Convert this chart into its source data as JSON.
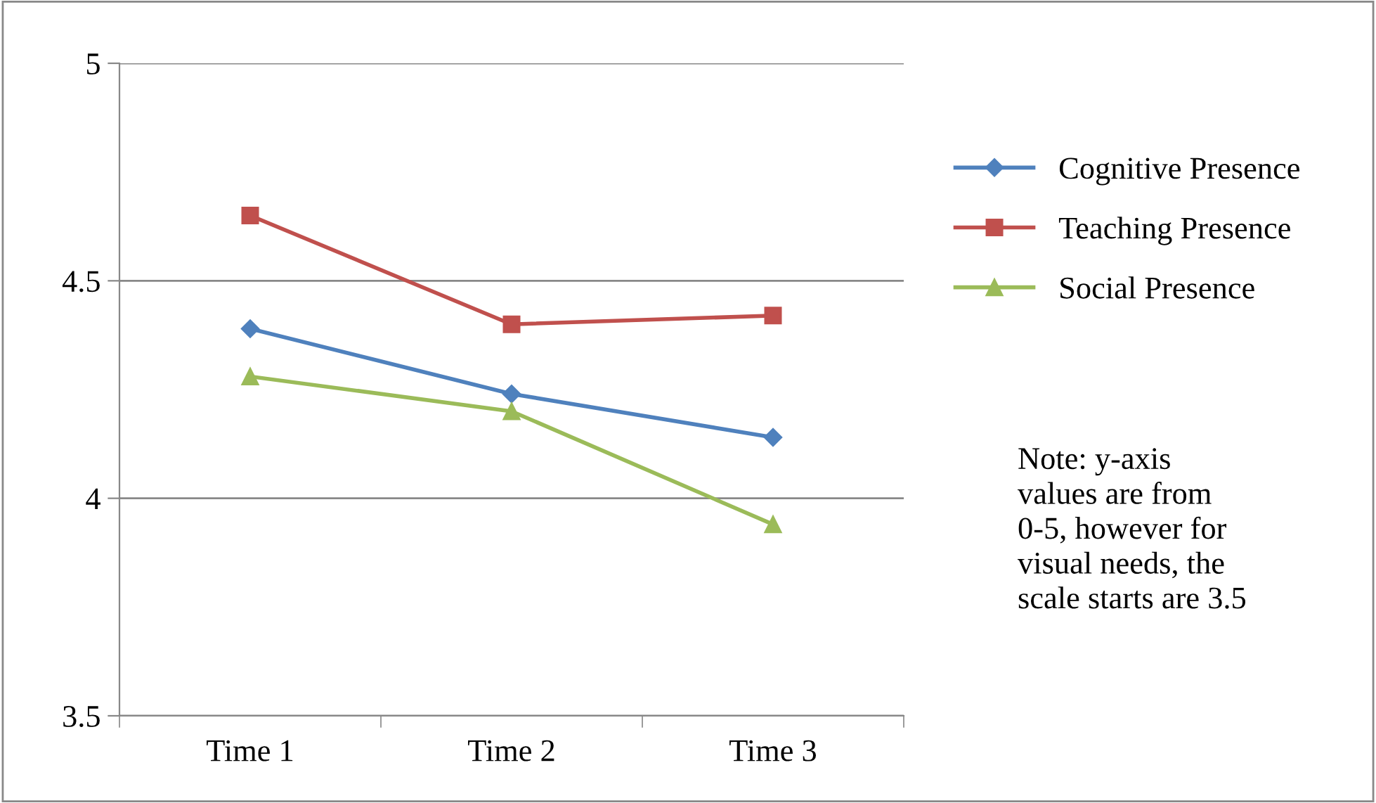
{
  "chart_data": {
    "type": "line",
    "categories": [
      "Time 1",
      "Time 2",
      "Time 3"
    ],
    "series": [
      {
        "name": "Cognitive Presence",
        "color": "#4f81bd",
        "marker": "diamond",
        "values": [
          4.39,
          4.24,
          4.14
        ]
      },
      {
        "name": "Teaching Presence",
        "color": "#c0504d",
        "marker": "square",
        "values": [
          4.65,
          4.4,
          4.42
        ]
      },
      {
        "name": "Social Presence",
        "color": "#9bbb59",
        "marker": "triangle",
        "values": [
          4.28,
          4.2,
          3.94
        ]
      }
    ],
    "ylim": [
      3.5,
      5
    ],
    "yticks": [
      3.5,
      4,
      4.5,
      5
    ],
    "grid": "y",
    "legend": "right",
    "annotations": [
      "Note: y-axis\nvalues are from\n0-5, however for\nvisual needs, the\nscale starts are 3.5"
    ]
  }
}
